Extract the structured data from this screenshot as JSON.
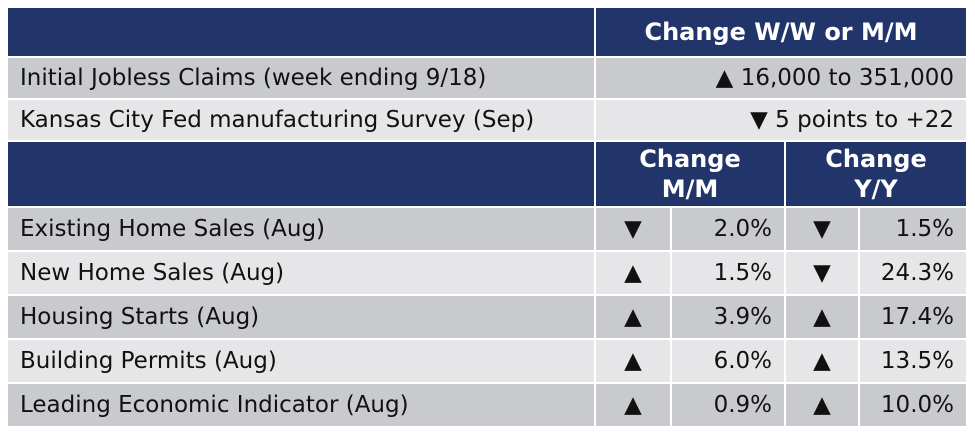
{
  "top_header": "Change W/W or M/M",
  "top_rows": [
    {
      "label": "Initial Jobless Claims (week ending 9/18)",
      "arrow": "▲",
      "change": "16,000 to 351,000"
    },
    {
      "label": "Kansas City Fed manufacturing Survey (Sep)",
      "arrow": "▼",
      "change": "5 points to +22"
    }
  ],
  "sub_header": {
    "mm_line1": "Change",
    "mm_line2": "M/M",
    "yy_line1": "Change",
    "yy_line2": "Y/Y"
  },
  "rows": [
    {
      "label": "Existing Home Sales (Aug)",
      "mm_arrow": "▼",
      "mm": "2.0%",
      "yy_arrow": "▼",
      "yy": "1.5%"
    },
    {
      "label": "New Home Sales (Aug)",
      "mm_arrow": "▲",
      "mm": "1.5%",
      "yy_arrow": "▼",
      "yy": "24.3%"
    },
    {
      "label": "Housing Starts (Aug)",
      "mm_arrow": "▲",
      "mm": "3.9%",
      "yy_arrow": "▲",
      "yy": "17.4%"
    },
    {
      "label": "Building Permits (Aug)",
      "mm_arrow": "▲",
      "mm": "6.0%",
      "yy_arrow": "▲",
      "yy": "13.5%"
    },
    {
      "label": "Leading Economic Indicator (Aug)",
      "mm_arrow": "▲",
      "mm": "0.9%",
      "yy_arrow": "▲",
      "yy": "10.0%"
    }
  ],
  "colors": {
    "header": "#22356b",
    "row_dark": "#c9cace",
    "row_light": "#e6e6e8"
  }
}
